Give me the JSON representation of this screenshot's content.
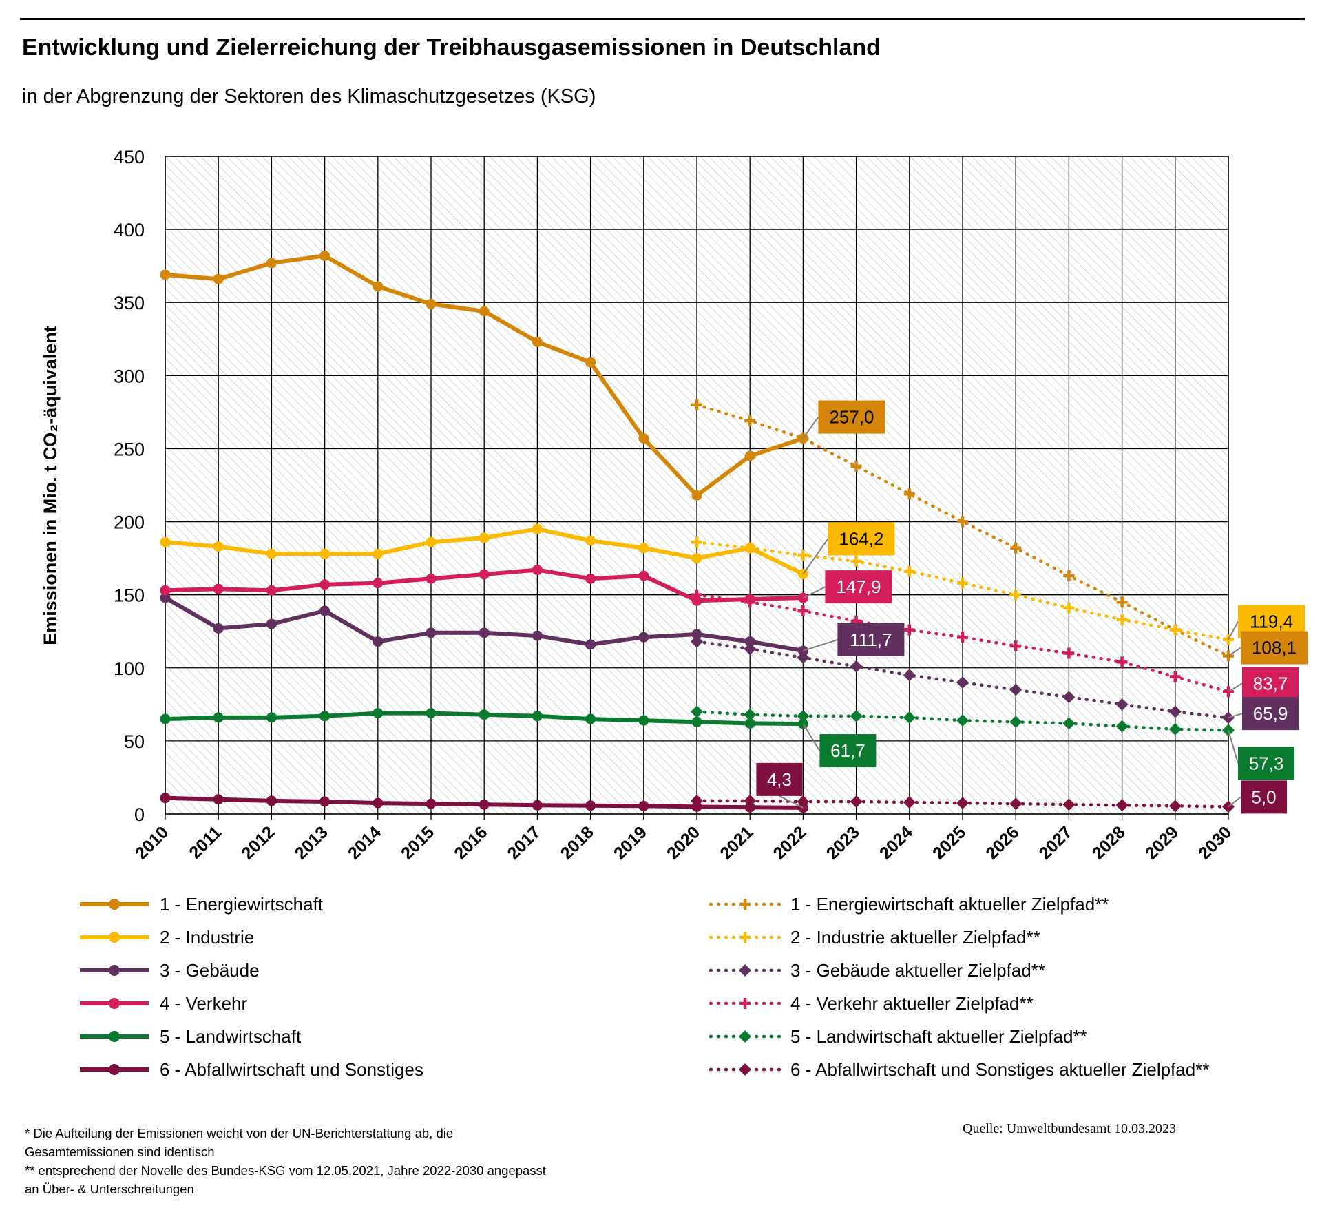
{
  "header": {
    "title": "Entwicklung und Zielerreichung der Treibhausgasemissionen in Deutschland",
    "subtitle": "in der Abgrenzung der Sektoren des Klimaschutzgesetzes (KSG)"
  },
  "chart_data": {
    "type": "line",
    "ylabel": "Emissionen in Mio. t CO₂-äquivalent",
    "xlabel": "",
    "ylim": [
      0,
      450
    ],
    "yticks": [
      0,
      50,
      100,
      150,
      200,
      250,
      300,
      350,
      400,
      450
    ],
    "x": [
      "2010",
      "2011",
      "2012",
      "2013",
      "2014",
      "2015",
      "2016",
      "2017",
      "2018",
      "2019",
      "2020",
      "2021",
      "2022",
      "2023",
      "2024",
      "2025",
      "2026",
      "2027",
      "2028",
      "2029",
      "2030"
    ],
    "grid": true,
    "legend_position": "bottom",
    "series": [
      {
        "name": "1 - Energiewirtschaft",
        "kind": "actual",
        "color": "#D4860B",
        "x": [
          2010,
          2011,
          2012,
          2013,
          2014,
          2015,
          2016,
          2017,
          2018,
          2019,
          2020,
          2021,
          2022
        ],
        "values": [
          369,
          366,
          377,
          382,
          361,
          349,
          344,
          323,
          309,
          257,
          218,
          245,
          257.0
        ]
      },
      {
        "name": "2 - Industrie",
        "kind": "actual",
        "color": "#FBBA00",
        "x": [
          2010,
          2011,
          2012,
          2013,
          2014,
          2015,
          2016,
          2017,
          2018,
          2019,
          2020,
          2021,
          2022
        ],
        "values": [
          186,
          183,
          178,
          178,
          178,
          186,
          189,
          195,
          187,
          182,
          175,
          182,
          164.2
        ]
      },
      {
        "name": "3 - Gebäude",
        "kind": "actual",
        "color": "#61305F",
        "x": [
          2010,
          2011,
          2012,
          2013,
          2014,
          2015,
          2016,
          2017,
          2018,
          2019,
          2020,
          2021,
          2022
        ],
        "values": [
          148,
          127,
          130,
          139,
          118,
          124,
          124,
          122,
          116,
          121,
          123,
          118,
          111.7
        ]
      },
      {
        "name": "4 - Verkehr",
        "kind": "actual",
        "color": "#D21E5C",
        "x": [
          2010,
          2011,
          2012,
          2013,
          2014,
          2015,
          2016,
          2017,
          2018,
          2019,
          2020,
          2021,
          2022
        ],
        "values": [
          153,
          154,
          153,
          157,
          158,
          161,
          164,
          167,
          161,
          163,
          146,
          147,
          147.9
        ]
      },
      {
        "name": "5 - Landwirtschaft",
        "kind": "actual",
        "color": "#0A7A2F",
        "x": [
          2010,
          2011,
          2012,
          2013,
          2014,
          2015,
          2016,
          2017,
          2018,
          2019,
          2020,
          2021,
          2022
        ],
        "values": [
          65,
          66,
          66,
          67,
          69,
          69,
          68,
          67,
          65,
          64,
          63,
          62,
          61.7
        ]
      },
      {
        "name": "6 - Abfallwirtschaft und Sonstiges",
        "kind": "actual",
        "color": "#7F0F3E",
        "x": [
          2010,
          2011,
          2012,
          2013,
          2014,
          2015,
          2016,
          2017,
          2018,
          2019,
          2020,
          2021,
          2022
        ],
        "values": [
          11,
          10,
          9,
          8.5,
          7.5,
          7,
          6.5,
          6,
          5.8,
          5.5,
          5,
          4.6,
          4.3
        ]
      },
      {
        "name": "1 - Energiewirtschaft aktueller Zielpfad**",
        "kind": "target",
        "marker": "plus",
        "color": "#D4860B",
        "x": [
          2020,
          2021,
          2022,
          2023,
          2024,
          2025,
          2026,
          2027,
          2028,
          2029,
          2030
        ],
        "values": [
          280,
          269,
          257,
          238,
          219,
          200,
          182,
          163,
          145,
          126,
          108.1
        ]
      },
      {
        "name": "2 - Industrie aktueller Zielpfad**",
        "kind": "target",
        "marker": "plus",
        "color": "#FBBA00",
        "x": [
          2020,
          2021,
          2022,
          2023,
          2024,
          2025,
          2026,
          2027,
          2028,
          2029,
          2030
        ],
        "values": [
          186,
          182,
          177,
          173,
          166,
          158,
          150,
          141,
          133,
          126,
          119.4
        ]
      },
      {
        "name": "3 - Gebäude aktueller Zielpfad**",
        "kind": "target",
        "marker": "diamond",
        "color": "#61305F",
        "x": [
          2020,
          2021,
          2022,
          2023,
          2024,
          2025,
          2026,
          2027,
          2028,
          2029,
          2030
        ],
        "values": [
          118,
          113,
          107,
          101,
          95,
          90,
          85,
          80,
          75,
          70,
          65.9
        ]
      },
      {
        "name": "4 - Verkehr aktueller Zielpfad**",
        "kind": "target",
        "marker": "plus",
        "color": "#D21E5C",
        "x": [
          2020,
          2021,
          2022,
          2023,
          2024,
          2025,
          2026,
          2027,
          2028,
          2029,
          2030
        ],
        "values": [
          150,
          145,
          139,
          132,
          126,
          121,
          115,
          110,
          104,
          94,
          83.7
        ]
      },
      {
        "name": "5 - Landwirtschaft aktueller Zielpfad**",
        "kind": "target",
        "marker": "diamond",
        "color": "#0A7A2F",
        "x": [
          2020,
          2021,
          2022,
          2023,
          2024,
          2025,
          2026,
          2027,
          2028,
          2029,
          2030
        ],
        "values": [
          70,
          68,
          67,
          67,
          66,
          64,
          63,
          62,
          60,
          58,
          57.3
        ]
      },
      {
        "name": "6 - Abfallwirtschaft und Sonstiges aktueller Zielpfad**",
        "kind": "target",
        "marker": "diamond",
        "color": "#7F0F3E",
        "x": [
          2020,
          2021,
          2022,
          2023,
          2024,
          2025,
          2026,
          2027,
          2028,
          2029,
          2030
        ],
        "values": [
          9,
          9,
          8.5,
          8.5,
          8,
          7.5,
          7,
          6.5,
          6,
          5.5,
          5.0
        ]
      }
    ],
    "annotations": [
      {
        "text": "257,0",
        "value": 257.0,
        "year": 2022,
        "color": "#D4860B"
      },
      {
        "text": "164,2",
        "value": 164.2,
        "year": 2022,
        "color": "#FBBA00"
      },
      {
        "text": "147,9",
        "value": 147.9,
        "year": 2022,
        "color": "#D21E5C"
      },
      {
        "text": "111,7",
        "value": 111.7,
        "year": 2022,
        "color": "#61305F"
      },
      {
        "text": "61,7",
        "value": 61.7,
        "year": 2022,
        "color": "#0A7A2F"
      },
      {
        "text": "4,3",
        "value": 4.3,
        "year": 2022,
        "color": "#7F0F3E"
      },
      {
        "text": "119,4",
        "value": 119.4,
        "year": 2030,
        "color": "#FBBA00"
      },
      {
        "text": "108,1",
        "value": 108.1,
        "year": 2030,
        "color": "#D4860B"
      },
      {
        "text": "83,7",
        "value": 83.7,
        "year": 2030,
        "color": "#D21E5C"
      },
      {
        "text": "65,9",
        "value": 65.9,
        "year": 2030,
        "color": "#61305F"
      },
      {
        "text": "57,3",
        "value": 57.3,
        "year": 2030,
        "color": "#0A7A2F"
      },
      {
        "text": "5,0",
        "value": 5.0,
        "year": 2030,
        "color": "#7F0F3E"
      }
    ]
  },
  "footnotes": {
    "line1": "* Die Aufteilung der Emissionen weicht von der UN-Berichterstattung ab, die",
    "line2": "Gesamtemissionen sind identisch",
    "line3": "** entsprechend der Novelle des Bundes-KSG vom 12.05.2021, Jahre 2022-2030 angepasst",
    "line4": "an Über- & Unterschreitungen"
  },
  "source": "Quelle: Umweltbundesamt  10.03.2023"
}
